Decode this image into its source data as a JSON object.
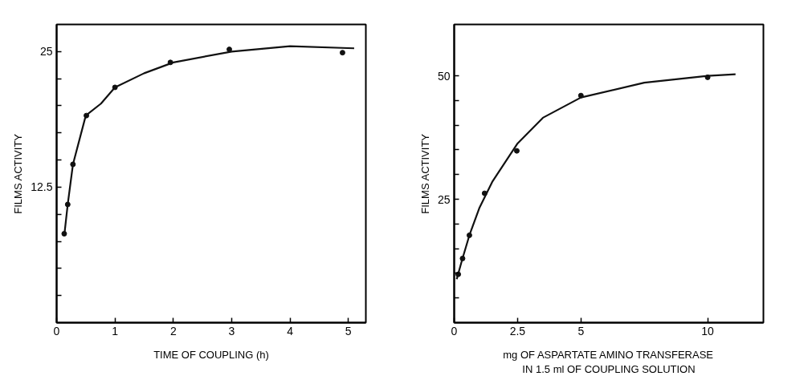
{
  "chart_data": [
    {
      "type": "scatter",
      "xlabel": "TIME OF COUPLING (h)",
      "ylabel": "FILMS ACTIVITY",
      "xlim": [
        0,
        5.3
      ],
      "ylim": [
        0,
        27.5
      ],
      "xticks": [
        0,
        1,
        2,
        3,
        4,
        5
      ],
      "yticks": [
        {
          "value": 2.5,
          "label": null
        },
        {
          "value": 5,
          "label": null
        },
        {
          "value": 7.5,
          "label": null
        },
        {
          "value": 10,
          "label": null
        },
        12.5,
        {
          "value": 15,
          "label": null
        },
        {
          "value": 17.5,
          "label": null
        },
        {
          "value": 20,
          "label": null
        },
        {
          "value": 22.5,
          "label": null
        },
        25
      ],
      "series": [
        {
          "marker": "circle",
          "color": "#111111",
          "x": [
            0.13,
            0.19,
            0.28,
            0.51,
            1.0,
            1.95,
            2.96,
            4.9
          ],
          "values": [
            8.2,
            10.9,
            14.6,
            19.1,
            21.7,
            24.0,
            25.2,
            24.9
          ]
        },
        {
          "type": "line",
          "color": "#111111",
          "x": [
            0.13,
            0.19,
            0.28,
            0.5,
            0.76,
            1.0,
            1.5,
            2.0,
            3.0,
            4.0,
            5.1
          ],
          "values": [
            8.0,
            10.9,
            14.6,
            19.1,
            20.2,
            21.7,
            23.0,
            24.0,
            25.0,
            25.5,
            25.3
          ]
        }
      ]
    },
    {
      "type": "scatter",
      "xlabel": "mg OF ASPARTATE AMINO TRANSFERASE\nIN 1.5 ml OF COUPLING SOLUTION",
      "ylabel": "FILMS ACTIVITY",
      "xlim": [
        0,
        12.2
      ],
      "ylim": [
        0,
        60.4
      ],
      "xticks": [
        0,
        2.5,
        5,
        10
      ],
      "yticks": [
        {
          "value": 5,
          "label": null
        },
        {
          "value": 10,
          "label": null
        },
        {
          "value": 15,
          "label": null
        },
        {
          "value": 20,
          "label": null
        },
        25,
        {
          "value": 30,
          "label": null
        },
        {
          "value": 35,
          "label": null
        },
        {
          "value": 40,
          "label": null
        },
        {
          "value": 45,
          "label": null
        },
        50
      ],
      "series": [
        {
          "marker": "circle",
          "color": "#111111",
          "x": [
            0.16,
            0.33,
            0.6,
            1.2,
            2.47,
            5.0,
            10.0
          ],
          "values": [
            9.8,
            13.0,
            17.7,
            26.2,
            34.8,
            46.0,
            49.7
          ]
        },
        {
          "type": "line",
          "color": "#111111",
          "x": [
            0.1,
            0.3,
            0.6,
            1.0,
            1.5,
            2.5,
            3.5,
            5.0,
            7.5,
            10.0,
            11.1
          ],
          "values": [
            8.8,
            12.5,
            17.7,
            23.3,
            28.5,
            36.3,
            41.5,
            45.6,
            48.6,
            50.0,
            50.3
          ]
        }
      ]
    }
  ]
}
